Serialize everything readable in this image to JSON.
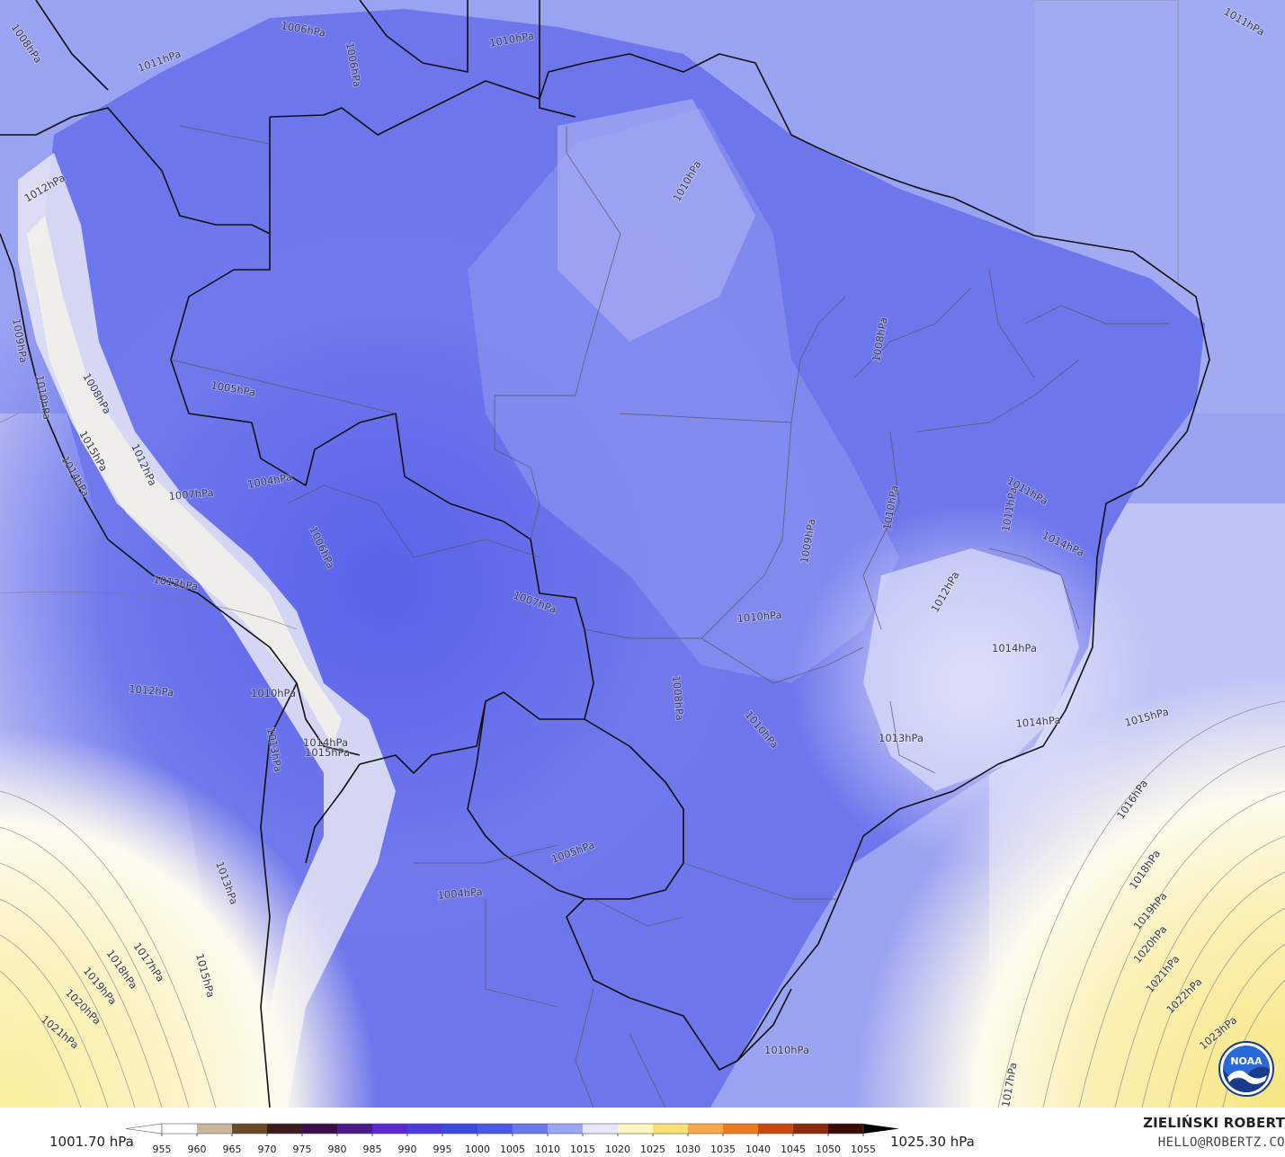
{
  "map": {
    "isobar_labels": [
      {
        "text": "1008hPa",
        "rot": 55
      },
      {
        "text": "1006hPa",
        "rot": 10
      },
      {
        "text": "1006hPa",
        "rot": 80
      },
      {
        "text": "1010hPa",
        "rot": -10
      },
      {
        "text": "1011hPa",
        "rot": 30
      },
      {
        "text": "1010hPa",
        "rot": -60
      },
      {
        "text": "1011hPa",
        "rot": -20
      },
      {
        "text": "1012hPa",
        "rot": -30
      },
      {
        "text": "1009hPa",
        "rot": 80
      },
      {
        "text": "1010hPa",
        "rot": 80
      },
      {
        "text": "1008hPa",
        "rot": 60
      },
      {
        "text": "1005hPa",
        "rot": 10
      },
      {
        "text": "1004hPa",
        "rot": -10
      },
      {
        "text": "1007hPa",
        "rot": -5
      },
      {
        "text": "1015hPa",
        "rot": 60
      },
      {
        "text": "1014hPa",
        "rot": 60
      },
      {
        "text": "1012hPa",
        "rot": 65
      },
      {
        "text": "1013hPa",
        "rot": 10
      },
      {
        "text": "1006hPa",
        "rot": 65
      },
      {
        "text": "1007hPa",
        "rot": 20
      },
      {
        "text": "1008hPa",
        "rot": -80
      },
      {
        "text": "1010hPa",
        "rot": -5
      },
      {
        "text": "1009hPa",
        "rot": -80
      },
      {
        "text": "1010hPa",
        "rot": -80
      },
      {
        "text": "1011hPa",
        "rot": -80
      },
      {
        "text": "1014hPa",
        "rot": 25
      },
      {
        "text": "1012hPa",
        "rot": -60
      },
      {
        "text": "1014hPa",
        "rot": 0
      },
      {
        "text": "1014hPa",
        "rot": -5
      },
      {
        "text": "1013hPa",
        "rot": 0
      },
      {
        "text": "1010hPa",
        "rot": 50
      },
      {
        "text": "1008hPa",
        "rot": 85
      },
      {
        "text": "1015hPa",
        "rot": -15
      },
      {
        "text": "1012hPa",
        "rot": 5
      },
      {
        "text": "1010hPa",
        "rot": 0
      },
      {
        "text": "1013hPa",
        "rot": 80
      },
      {
        "text": "1014hPa",
        "rot": 0
      },
      {
        "text": "1015hPa",
        "rot": 0
      },
      {
        "text": "1005hPa",
        "rot": -20
      },
      {
        "text": "1004hPa",
        "rot": -5
      },
      {
        "text": "1013hPa",
        "rot": 70
      },
      {
        "text": "1010hPa",
        "rot": 0
      },
      {
        "text": "1016hPa",
        "rot": -55
      },
      {
        "text": "1018hPa",
        "rot": -55
      },
      {
        "text": "1019hPa",
        "rot": -50
      },
      {
        "text": "1020hPa",
        "rot": -50
      },
      {
        "text": "1021hPa",
        "rot": -50
      },
      {
        "text": "1022hPa",
        "rot": -45
      },
      {
        "text": "1023hPa",
        "rot": -40
      },
      {
        "text": "1017hPa",
        "rot": 55
      },
      {
        "text": "1018hPa",
        "rot": 55
      },
      {
        "text": "1019hPa",
        "rot": 50
      },
      {
        "text": "1020hPa",
        "rot": 45
      },
      {
        "text": "1021hPa",
        "rot": 40
      },
      {
        "text": "1015hPa",
        "rot": 75
      },
      {
        "text": "1011hPa",
        "rot": 30
      },
      {
        "text": "1017hPa",
        "rot": -80
      }
    ]
  },
  "colorbar": {
    "min_label": "1001.70 hPa",
    "max_label": "1025.30 hPa",
    "ticks": [
      "955",
      "960",
      "965",
      "970",
      "975",
      "980",
      "985",
      "990",
      "995",
      "1000",
      "1005",
      "1010",
      "1015",
      "1020",
      "1025",
      "1030",
      "1035",
      "1040",
      "1045",
      "1050",
      "1055"
    ],
    "colors": [
      "#ffffff",
      "#c8b8a0",
      "#6b4a2a",
      "#3a1a1a",
      "#3c0f4a",
      "#4a1a8a",
      "#5a2ad0",
      "#4a3ae0",
      "#3a4ae0",
      "#4a5ae6",
      "#6a78ee",
      "#9aa6f4",
      "#e6e8fa",
      "#fff6c0",
      "#fbe07a",
      "#f6a84a",
      "#ee7a20",
      "#c84a10",
      "#8a2a0a",
      "#3a0a04",
      "#000000"
    ]
  },
  "branding": {
    "author": "ZIELIŃSKI ROBERT",
    "email": "HELLO@ROBERTZ.CO",
    "logo_text": "NOAA"
  }
}
